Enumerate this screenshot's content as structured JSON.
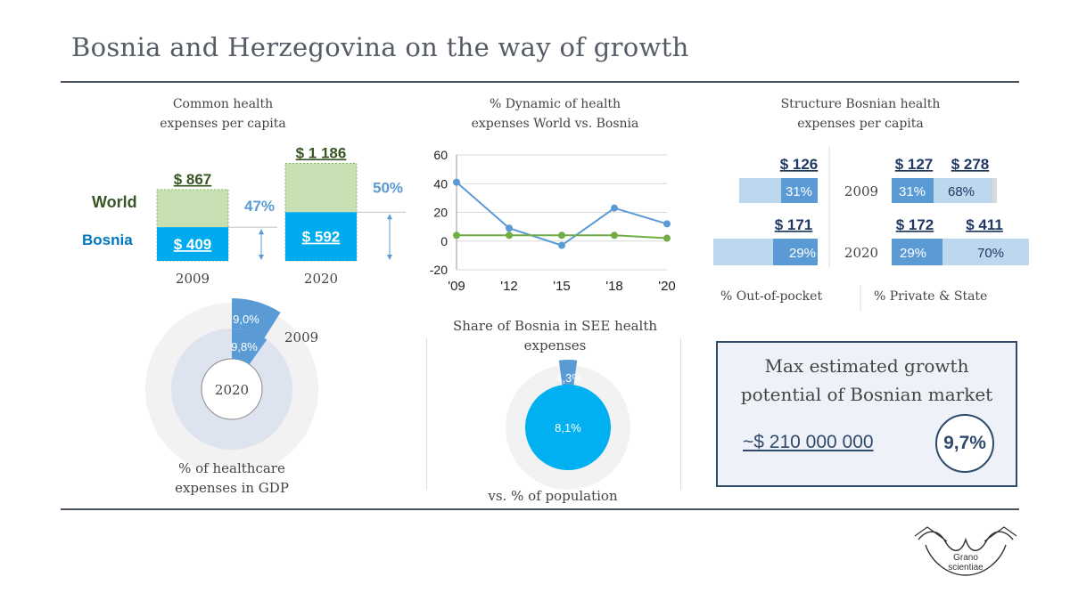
{
  "title": "Bosnia and Herzegovina on the way of growth",
  "colors": {
    "world_bar": "#c6e0b4",
    "bosnia_bar": "#00aaef",
    "dark_blue": "#5b9bd5",
    "light_blue": "#a9cdef",
    "line_world": "#70ad47",
    "line_bosnia": "#5b9bd5",
    "ring": "#f2f2f2",
    "inner_ring": "#dde3ef",
    "navy": "#2f4a6b"
  },
  "common": {
    "title_line1": "Common health",
    "title_line2": "expenses per capita",
    "world_label": "World",
    "bosnia_label": "Bosnia",
    "chart_data": {
      "type": "bar",
      "categories": [
        "2009",
        "2020"
      ],
      "series": [
        {
          "name": "World",
          "values": [
            867,
            1186
          ],
          "labels": [
            "$ 867",
            "$ 1 186"
          ]
        },
        {
          "name": "Bosnia",
          "values": [
            409,
            592
          ],
          "labels": [
            "$ 409",
            "$ 592"
          ]
        }
      ],
      "share_labels": [
        "47%",
        "50%"
      ]
    }
  },
  "dynamic": {
    "title_line1": "% Dynamic of health",
    "title_line2": "expenses World vs. Bosnia",
    "chart_data": {
      "type": "line",
      "x": [
        "'09",
        "'12",
        "'15",
        "'18",
        "'20"
      ],
      "ylim": [
        -20,
        60
      ],
      "yticks": [
        "60",
        "40",
        "20",
        "0",
        "-20"
      ],
      "series": [
        {
          "values": [
            41,
            9,
            -3,
            23,
            12
          ],
          "color": "#5b9bd5"
        },
        {
          "values": [
            4,
            4,
            4,
            4,
            2
          ],
          "color": "#70ad47"
        }
      ]
    }
  },
  "gdp": {
    "label_outer": "9,0%",
    "label_inner": "9,8%",
    "year_outer": "2009",
    "year_inner": "2020",
    "caption_line1": "% of healthcare",
    "caption_line2": "expenses in GDP",
    "chart_data": {
      "type": "pie",
      "series": [
        {
          "name": "2009",
          "values": [
            9.0
          ]
        },
        {
          "name": "2020",
          "values": [
            9.8
          ]
        }
      ]
    }
  },
  "share": {
    "title_line1": "Share of Bosnia in SEE health",
    "title_line2": "expenses",
    "expenses_label": "4,3%",
    "population_label": "8,1%",
    "caption": "vs. % of population",
    "chart_data": {
      "type": "pie",
      "series": [
        {
          "name": "expenses",
          "values": [
            4.3
          ]
        },
        {
          "name": "population",
          "values": [
            8.1
          ]
        }
      ]
    }
  },
  "structure": {
    "title_line1": "Structure Bosnian health",
    "title_line2": "expenses per capita",
    "year_2009": "2009",
    "year_2020": "2020",
    "left_2009_amount": "$ 126",
    "left_2009_pct": "31%",
    "left_2020_amount": "$ 171",
    "left_2020_pct": "29%",
    "right_2009_amount_a": "$ 127",
    "right_2009_amount_b": "$ 278",
    "right_2009_pct_a": "31%",
    "right_2009_pct_b": "68%",
    "right_2020_amount_a": "$ 172",
    "right_2020_amount_b": "$ 411",
    "right_2020_pct_a": "29%",
    "right_2020_pct_b": "70%",
    "legend_left": "% Out-of-pocket",
    "legend_right": "% Private & State",
    "chart_data": {
      "type": "bar",
      "categories": [
        "2009",
        "2020"
      ],
      "series": [
        {
          "name": "% Out-of-pocket",
          "values": [
            31,
            29
          ]
        },
        {
          "name": "% Private & State",
          "values": [
            68,
            70
          ]
        }
      ]
    }
  },
  "growth": {
    "title_line1": "Max estimated growth",
    "title_line2": "potential of Bosnian market",
    "amount": "~$ 210 000 000",
    "percent": "9,7%"
  },
  "logo": {
    "line1": "Grano",
    "line2": "scientiae",
    "icon": "grano-scientiae-logo-icon"
  }
}
